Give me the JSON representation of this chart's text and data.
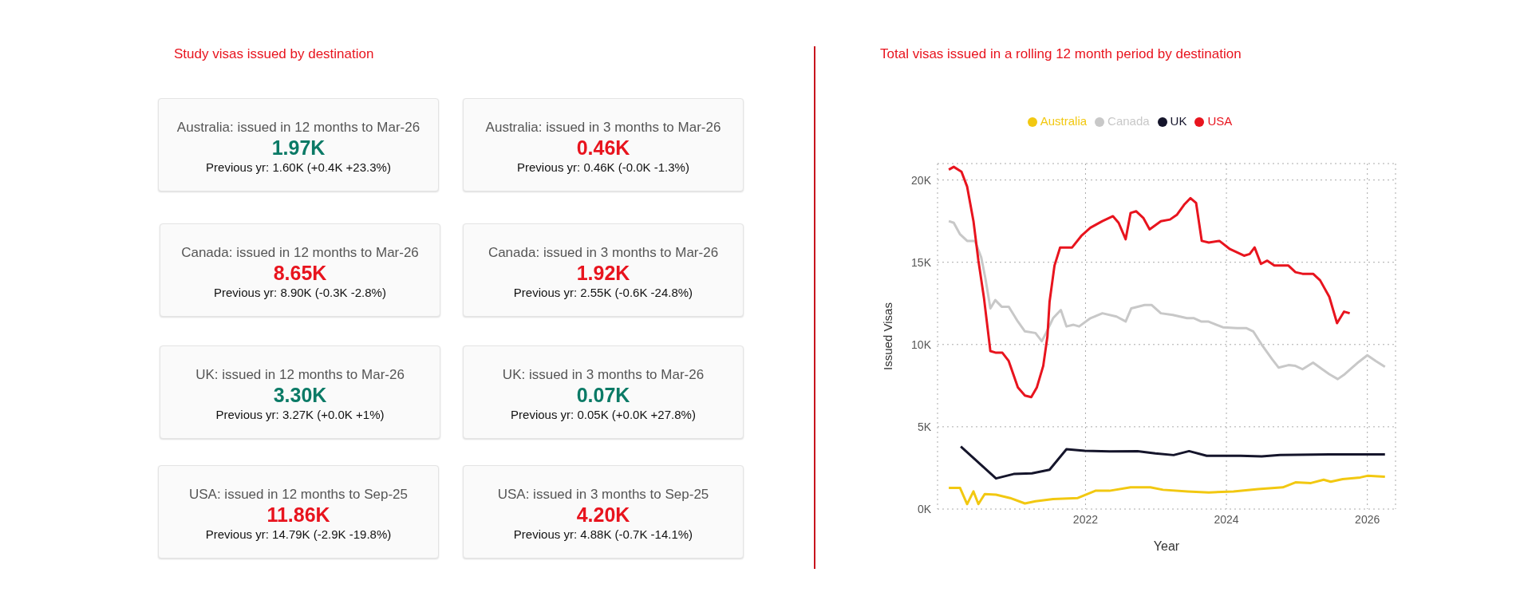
{
  "chart_data": [
    {
      "type": "other",
      "title": "Study visas issued by destination",
      "categories": [
        "Australia: issued in 12 months to Mar-26",
        "Australia: issued in 3 months to Mar-26",
        "Canada: issued in 12 months to Mar-26",
        "Canada: issued in 3 months to Mar-26",
        "UK: issued in 12 months to Mar-26",
        "UK: issued in 3 months to Mar-26",
        "USA: issued in 12 months to Sep-25",
        "USA: issued in 3 months to Sep-25"
      ],
      "value_labels": [
        "1.97K",
        "0.46K",
        "8.65K",
        "1.92K",
        "3.30K",
        "0.07K",
        "11.86K",
        "4.20K"
      ],
      "annotations": [
        "Previous yr: 1.60K (+0.4K +23.3%)",
        "Previous yr: 0.46K (-0.0K -1.3%)",
        "Previous yr: 8.90K (-0.3K -2.8%)",
        "Previous yr: 2.55K (-0.6K -24.8%)",
        "Previous yr: 3.27K (+0.0K +1%)",
        "Previous yr: 0.05K (+0.0K +27.8%)",
        "Previous yr: 14.79K (-2.9K -19.8%)",
        "Previous yr: 4.88K (-0.7K -14.1%)"
      ]
    },
    {
      "type": "line",
      "title": "Total visas issued in a rolling 12 month period by destination",
      "xlabel": "Year",
      "ylabel": "Issued Visas",
      "xlim": [
        2019.9,
        2026.4
      ],
      "xticks": [
        2022,
        2024,
        2026
      ],
      "ylim": [
        0,
        21000
      ],
      "yticks": [
        {
          "value": 0,
          "label": "0K"
        },
        {
          "value": 5000,
          "label": "5K"
        },
        {
          "value": 10000,
          "label": "10K"
        },
        {
          "value": 15000,
          "label": "15K"
        },
        {
          "value": 20000,
          "label": "20K"
        }
      ],
      "grid": true,
      "legend": "top",
      "marker": "none",
      "line_style": "solid",
      "series": [
        {
          "name": "Australia",
          "color": "#f2c811",
          "x": [
            2020.06,
            2020.22,
            2020.32,
            2020.41,
            2020.48,
            2020.57,
            2020.73,
            2020.93,
            2021.14,
            2021.29,
            2021.54,
            2021.89,
            2022.14,
            2022.34,
            2022.64,
            2022.92,
            2023.1,
            2023.45,
            2023.75,
            2024.1,
            2024.45,
            2024.8,
            2024.98,
            2025.2,
            2025.38,
            2025.48,
            2025.65,
            2025.9,
            2026.0,
            2026.25
          ],
          "values": [
            1280,
            1280,
            300,
            1070,
            300,
            910,
            870,
            670,
            340,
            470,
            610,
            670,
            1110,
            1110,
            1320,
            1320,
            1170,
            1070,
            1010,
            1070,
            1210,
            1320,
            1620,
            1580,
            1780,
            1660,
            1820,
            1920,
            2020,
            1960
          ]
        },
        {
          "name": "Canada",
          "color": "#c8c8c8",
          "x": [
            2020.06,
            2020.13,
            2020.22,
            2020.32,
            2020.43,
            2020.52,
            2020.58,
            2020.65,
            2020.72,
            2020.81,
            2020.91,
            2021.04,
            2021.14,
            2021.29,
            2021.38,
            2021.44,
            2021.54,
            2021.65,
            2021.73,
            2021.83,
            2021.91,
            2022.07,
            2022.24,
            2022.44,
            2022.57,
            2022.65,
            2022.84,
            2022.94,
            2023.07,
            2023.24,
            2023.44,
            2023.54,
            2023.64,
            2023.74,
            2023.95,
            2024.15,
            2024.28,
            2024.38,
            2024.5,
            2024.65,
            2024.74,
            2024.88,
            2024.98,
            2025.08,
            2025.23,
            2025.36,
            2025.46,
            2025.58,
            2025.68,
            2025.76,
            2025.88,
            2026.0,
            2026.12,
            2026.25
          ],
          "values": [
            17500,
            17400,
            16700,
            16300,
            16300,
            15300,
            14000,
            12200,
            12700,
            12300,
            12300,
            11400,
            10800,
            10700,
            10200,
            10700,
            11600,
            12100,
            11100,
            11200,
            11100,
            11600,
            11900,
            11700,
            11400,
            12200,
            12400,
            12400,
            11900,
            11800,
            11600,
            11600,
            11400,
            11400,
            11050,
            11000,
            11000,
            10800,
            10000,
            9100,
            8600,
            8750,
            8700,
            8500,
            8900,
            8500,
            8200,
            7900,
            8200,
            8500,
            8950,
            9350,
            9000,
            8650
          ]
        },
        {
          "name": "UK",
          "color": "#15152b",
          "x": [
            2020.23,
            2020.73,
            2020.98,
            2021.24,
            2021.49,
            2021.73,
            2021.99,
            2022.34,
            2022.74,
            2022.99,
            2023.25,
            2023.47,
            2023.72,
            2024.2,
            2024.5,
            2024.76,
            2025.46,
            2026.25
          ],
          "values": [
            3800,
            1860,
            2130,
            2170,
            2390,
            3640,
            3540,
            3500,
            3520,
            3380,
            3280,
            3520,
            3240,
            3240,
            3200,
            3280,
            3320,
            3320
          ]
        },
        {
          "name": "USA",
          "color": "#e8141e",
          "x": [
            2020.06,
            2020.13,
            2020.24,
            2020.32,
            2020.41,
            2020.48,
            2020.56,
            2020.65,
            2020.73,
            2020.82,
            2020.91,
            2021.04,
            2021.14,
            2021.23,
            2021.31,
            2021.4,
            2021.46,
            2021.49,
            2021.56,
            2021.64,
            2021.81,
            2021.94,
            2022.07,
            2022.24,
            2022.39,
            2022.47,
            2022.57,
            2022.64,
            2022.72,
            2022.82,
            2022.91,
            2023.07,
            2023.2,
            2023.3,
            2023.4,
            2023.49,
            2023.57,
            2023.65,
            2023.75,
            2023.9,
            2024.05,
            2024.25,
            2024.33,
            2024.4,
            2024.49,
            2024.58,
            2024.68,
            2024.88,
            2024.98,
            2025.08,
            2025.23,
            2025.33,
            2025.46,
            2025.57,
            2025.67,
            2025.75
          ],
          "values": [
            20630,
            20800,
            20500,
            19600,
            17500,
            15100,
            12800,
            9600,
            9500,
            9500,
            9000,
            7400,
            6900,
            6800,
            7400,
            8700,
            10500,
            12600,
            14800,
            15900,
            15900,
            16600,
            17100,
            17500,
            17800,
            17400,
            16400,
            18000,
            18100,
            17700,
            17000,
            17500,
            17600,
            17900,
            18500,
            18900,
            18600,
            16300,
            16200,
            16300,
            15800,
            15400,
            15500,
            15900,
            14900,
            15100,
            14800,
            14800,
            14400,
            14300,
            14300,
            13900,
            12900,
            11300,
            12000,
            11900
          ]
        }
      ]
    }
  ]
}
